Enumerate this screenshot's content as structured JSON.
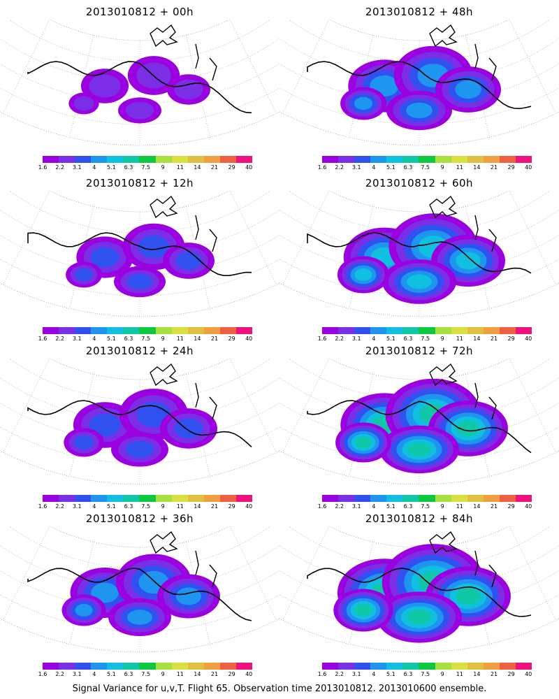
{
  "figure": {
    "caption": "Signal Variance for u,v,T. Flight 65. Observation time 2013010812. 2013010600 ensemble."
  },
  "colorbar": {
    "tick_labels": [
      "1.6",
      "2.2",
      "3.1",
      "4",
      "5.1",
      "6.3",
      "7.5",
      "9",
      "11",
      "14",
      "21",
      "29",
      "40"
    ],
    "colors": [
      "#9b00e0",
      "#7c2ee6",
      "#3050f0",
      "#1e96f0",
      "#10c0e0",
      "#10c8a8",
      "#10c840",
      "#a8e040",
      "#d8e040",
      "#e0c040",
      "#f0a040",
      "#f06040",
      "#f01080"
    ]
  },
  "panels": [
    {
      "title": "2013010812 + 00h",
      "intensity": 0.15
    },
    {
      "title": "2013010812 + 48h",
      "intensity": 0.55
    },
    {
      "title": "2013010812 + 12h",
      "intensity": 0.3
    },
    {
      "title": "2013010812 + 60h",
      "intensity": 0.7
    },
    {
      "title": "2013010812 + 24h",
      "intensity": 0.4
    },
    {
      "title": "2013010812 + 72h",
      "intensity": 0.8
    },
    {
      "title": "2013010812 + 36h",
      "intensity": 0.5
    },
    {
      "title": "2013010812 + 84h",
      "intensity": 0.9
    }
  ]
}
